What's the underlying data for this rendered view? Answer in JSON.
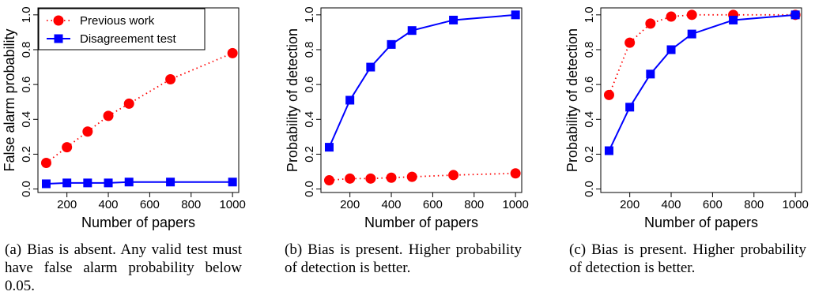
{
  "colors": {
    "previous": "#ff0000",
    "disagreement": "#0000ff",
    "axis": "#000000"
  },
  "legend": {
    "previous_label": "Previous work",
    "disagreement_label": "Disagreement test",
    "placement": "top-left"
  },
  "captions": [
    {
      "label": "(a)",
      "text": "Bias is absent. Any valid test must have false alarm probability below 0.05."
    },
    {
      "label": "(b)",
      "text": "Bias is present. Higher probability of detection is better."
    },
    {
      "label": "(c)",
      "text": "Bias is present. Higher probability of detection is better."
    }
  ],
  "chart_data": [
    {
      "type": "line",
      "xlabel": "Number of papers",
      "ylabel": "False alarm probability",
      "xlim": [
        60,
        1030
      ],
      "ylim": [
        -0.02,
        1.04
      ],
      "xticks": [
        200,
        400,
        600,
        800,
        1000
      ],
      "xtick_labels": [
        "200",
        "400",
        "600",
        "800",
        "1000"
      ],
      "yticks": [
        0.0,
        0.2,
        0.4,
        0.6,
        0.8,
        1.0
      ],
      "ytick_labels": [
        "0.0",
        "0.2",
        "0.4",
        "0.6",
        "0.8",
        "1.0"
      ],
      "grid": false,
      "legend": true,
      "series": [
        {
          "name": "Previous work",
          "style": "dotted-circle",
          "x": [
            100,
            200,
            300,
            400,
            500,
            700,
            1000
          ],
          "y": [
            0.15,
            0.24,
            0.33,
            0.42,
            0.49,
            0.63,
            0.78
          ]
        },
        {
          "name": "Disagreement test",
          "style": "solid-square",
          "x": [
            100,
            200,
            300,
            400,
            500,
            700,
            1000
          ],
          "y": [
            0.03,
            0.035,
            0.035,
            0.035,
            0.04,
            0.04,
            0.04
          ]
        }
      ]
    },
    {
      "type": "line",
      "xlabel": "Number of papers",
      "ylabel": "Probability of detection",
      "xlim": [
        60,
        1030
      ],
      "ylim": [
        -0.02,
        1.04
      ],
      "xticks": [
        200,
        400,
        600,
        800,
        1000
      ],
      "xtick_labels": [
        "200",
        "400",
        "600",
        "800",
        "1000"
      ],
      "yticks": [
        0.0,
        0.2,
        0.4,
        0.6,
        0.8,
        1.0
      ],
      "ytick_labels": [
        "0.0",
        "0.2",
        "0.4",
        "0.6",
        "0.8",
        "1.0"
      ],
      "grid": false,
      "legend": false,
      "series": [
        {
          "name": "Previous work",
          "style": "dotted-circle",
          "x": [
            100,
            200,
            300,
            400,
            500,
            700,
            1000
          ],
          "y": [
            0.05,
            0.06,
            0.06,
            0.065,
            0.07,
            0.08,
            0.09
          ]
        },
        {
          "name": "Disagreement test",
          "style": "solid-square",
          "x": [
            100,
            200,
            300,
            400,
            500,
            700,
            1000
          ],
          "y": [
            0.24,
            0.51,
            0.7,
            0.83,
            0.91,
            0.97,
            1.0
          ]
        }
      ]
    },
    {
      "type": "line",
      "xlabel": "Number of papers",
      "ylabel": "Probability of detection",
      "xlim": [
        60,
        1030
      ],
      "ylim": [
        -0.02,
        1.04
      ],
      "xticks": [
        200,
        400,
        600,
        800,
        1000
      ],
      "xtick_labels": [
        "200",
        "400",
        "600",
        "800",
        "1000"
      ],
      "yticks": [
        0.0,
        0.2,
        0.4,
        0.6,
        0.8,
        1.0
      ],
      "ytick_labels": [
        "0.0",
        "0.2",
        "0.4",
        "0.6",
        "0.8",
        "1.0"
      ],
      "grid": false,
      "legend": false,
      "series": [
        {
          "name": "Previous work",
          "style": "dotted-circle",
          "x": [
            100,
            200,
            300,
            400,
            500,
            700,
            1000
          ],
          "y": [
            0.54,
            0.84,
            0.95,
            0.99,
            1.0,
            1.0,
            1.0
          ]
        },
        {
          "name": "Disagreement test",
          "style": "solid-square",
          "x": [
            100,
            200,
            300,
            400,
            500,
            700,
            1000
          ],
          "y": [
            0.22,
            0.47,
            0.66,
            0.8,
            0.89,
            0.97,
            1.0
          ]
        }
      ]
    }
  ]
}
